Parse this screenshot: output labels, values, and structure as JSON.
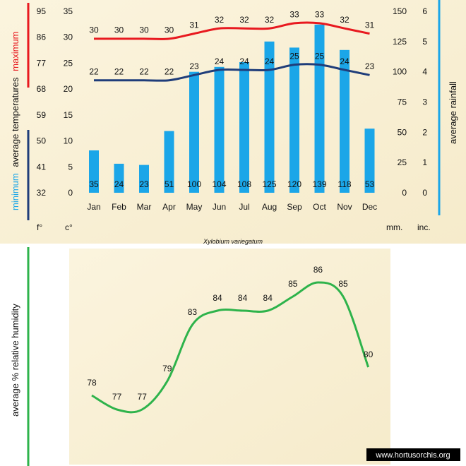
{
  "title": "Xylobium variegatum",
  "watermark": "www.hortusorchis.org",
  "colors": {
    "max_line": "#e8191f",
    "min_line": "#1f3d7a",
    "rain_bars": "#1ba6e8",
    "humidity_line": "#2eb34b",
    "axis_rain": "#1ba6e8",
    "paper": "#fbf3dc"
  },
  "unit_labels": {
    "fahrenheit": "f°",
    "celsius": "c°",
    "mm": "mm.",
    "inch": "inc."
  },
  "left_title": {
    "min_word": "minimum",
    "avg_temp": "average  temperatures",
    "max_word": "maximum"
  },
  "right_title": "average rainfall",
  "humidity_title": "average %  relative humidity",
  "chart_data": [
    {
      "type": "bar",
      "categories": [
        "Jan",
        "Feb",
        "Mar",
        "Apr",
        "May",
        "Jun",
        "Jul",
        "Aug",
        "Sep",
        "Oct",
        "Nov",
        "Dec"
      ],
      "series": [
        {
          "name": "maximum",
          "type": "line",
          "values": [
            30,
            30,
            30,
            30,
            31,
            32,
            32,
            32,
            33,
            33,
            32,
            31
          ]
        },
        {
          "name": "minimum",
          "type": "line",
          "values": [
            22,
            22,
            22,
            22,
            23,
            24,
            24,
            24,
            25,
            25,
            24,
            23
          ]
        },
        {
          "name": "average rainfall",
          "type": "bar",
          "values": [
            35,
            24,
            23,
            51,
            100,
            104,
            108,
            125,
            120,
            139,
            118,
            53
          ]
        }
      ],
      "axes": {
        "celsius": {
          "ticks": [
            0,
            5,
            10,
            15,
            20,
            25,
            30,
            35
          ],
          "range": [
            0,
            35
          ]
        },
        "fahrenheit": {
          "ticks": [
            32,
            41,
            50,
            59,
            68,
            77,
            86,
            95
          ]
        },
        "mm": {
          "ticks": [
            0,
            25,
            50,
            75,
            100,
            125,
            150
          ],
          "range": [
            0,
            150
          ]
        },
        "inch": {
          "ticks": [
            0,
            1,
            2,
            3,
            4,
            5,
            6
          ]
        }
      }
    },
    {
      "type": "line",
      "categories": [
        "Jan",
        "Feb",
        "Mar",
        "Apr",
        "May",
        "Jun",
        "Jul",
        "Aug",
        "Sep",
        "Oct",
        "Nov",
        "Dec"
      ],
      "series": [
        {
          "name": "average % relative humidity",
          "values": [
            78,
            77,
            77,
            79,
            83,
            84,
            84,
            84,
            85,
            86,
            85,
            80
          ]
        }
      ],
      "ylim": [
        75,
        88
      ]
    }
  ]
}
